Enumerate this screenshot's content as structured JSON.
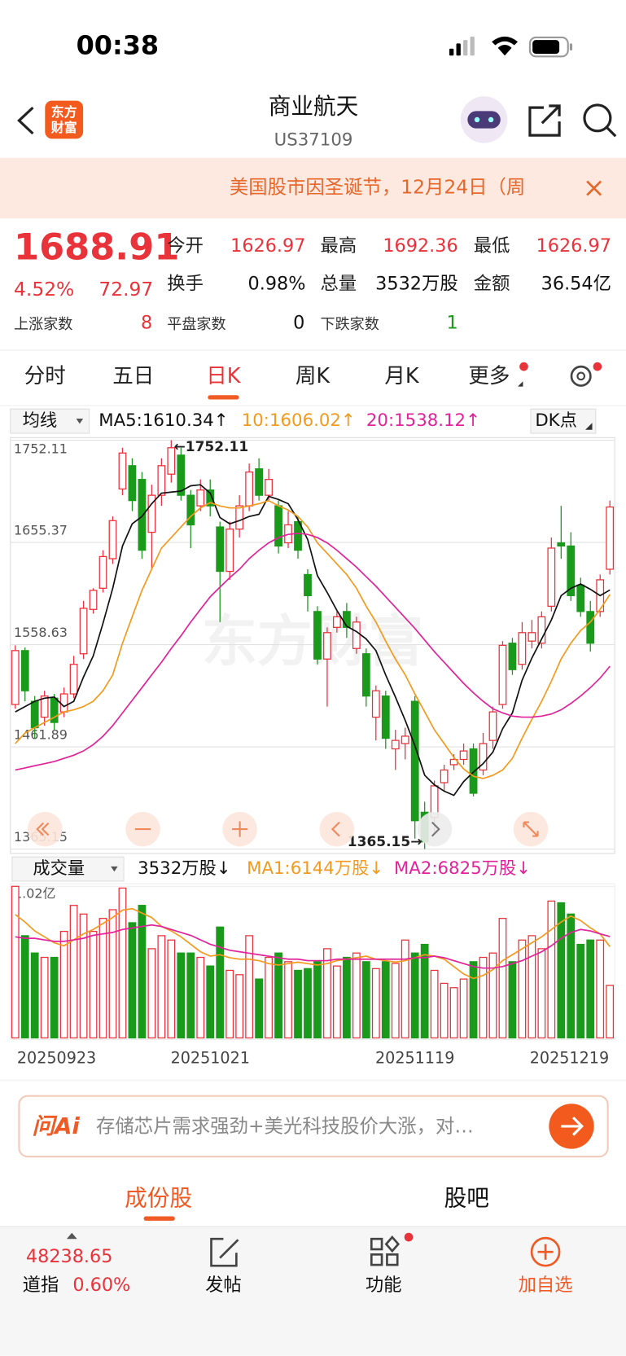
{
  "status": {
    "time": "00:38"
  },
  "header": {
    "logo": [
      "东方",
      "财富"
    ],
    "title": "商业航天",
    "code": "US37109"
  },
  "notice": "美国股市因圣诞节，12月24日（周",
  "quote": {
    "price": "1688.91",
    "pct": "4.52%",
    "change": "72.97",
    "fields": [
      {
        "label": "今开",
        "value": "1626.97"
      },
      {
        "label": "最高",
        "value": "1692.36"
      },
      {
        "label": "最低",
        "value": "1626.97"
      },
      {
        "label": "换手",
        "value": "0.98%"
      },
      {
        "label": "总量",
        "value": "3532万股"
      },
      {
        "label": "金额",
        "value": "36.54亿"
      }
    ],
    "breadth": [
      {
        "label": "上涨家数",
        "value": "8"
      },
      {
        "label": "平盘家数",
        "value": "0"
      },
      {
        "label": "下跌家数",
        "value": "1"
      }
    ]
  },
  "tabs": [
    "分时",
    "五日",
    "日K",
    "周K",
    "月K",
    "更多"
  ],
  "active_tab": 2,
  "ma_bar": {
    "selector": "均线",
    "dk": "DK点"
  },
  "vol_bar": {
    "selector": "成交量",
    "current": "3532万股↓"
  },
  "chart_data": [
    {
      "type": "candlestick",
      "watermark": "东方财富",
      "up_color": "#e8333b",
      "down_color": "#1a9a1a",
      "open": [
        1502,
        1553,
        1505,
        1490,
        1508,
        1495,
        1512,
        1550,
        1592,
        1612,
        1640,
        1706,
        1728,
        1715,
        1665,
        1700,
        1720,
        1738,
        1700,
        1690,
        1705,
        1670,
        1628,
        1668,
        1690,
        1725,
        1700,
        1690,
        1655,
        1675,
        1625,
        1590,
        1545,
        1575,
        1590,
        1555,
        1550,
        1490,
        1510,
        1460,
        1465,
        1505,
        1400,
        1395,
        1428,
        1445,
        1450,
        1460,
        1440,
        1468,
        1502,
        1560,
        1540,
        1562,
        1560,
        1595,
        1655,
        1652,
        1615,
        1590,
        1590,
        1630
      ],
      "high": [
        1558,
        1556,
        1510,
        1515,
        1512,
        1518,
        1548,
        1600,
        1612,
        1648,
        1680,
        1745,
        1735,
        1722,
        1710,
        1735,
        1752.11,
        1745,
        1705,
        1715,
        1715,
        1675,
        1675,
        1700,
        1730,
        1735,
        1725,
        1695,
        1685,
        1680,
        1630,
        1595,
        1575,
        1590,
        1598,
        1585,
        1555,
        1520,
        1515,
        1478,
        1480,
        1510,
        1410,
        1430,
        1445,
        1455,
        1465,
        1465,
        1475,
        1500,
        1562,
        1565,
        1580,
        1582,
        1590,
        1660,
        1690,
        1665,
        1622,
        1600,
        1625,
        1695
      ],
      "low": [
        1498,
        1505,
        1470,
        1482,
        1478,
        1490,
        1508,
        1545,
        1588,
        1608,
        1635,
        1700,
        1685,
        1640,
        1630,
        1690,
        1712,
        1695,
        1650,
        1685,
        1680,
        1580,
        1620,
        1660,
        1685,
        1695,
        1695,
        1645,
        1650,
        1640,
        1590,
        1540,
        1500,
        1570,
        1565,
        1550,
        1500,
        1468,
        1460,
        1440,
        1450,
        1375,
        1365.15,
        1380,
        1420,
        1440,
        1445,
        1415,
        1435,
        1460,
        1498,
        1530,
        1535,
        1555,
        1555,
        1590,
        1640,
        1600,
        1585,
        1552,
        1585,
        1625
      ],
      "close": [
        1553,
        1515,
        1480,
        1510,
        1485,
        1512,
        1540,
        1593,
        1610,
        1642,
        1676,
        1740,
        1695,
        1648,
        1700,
        1728,
        1745,
        1700,
        1672,
        1705,
        1690,
        1628,
        1668,
        1690,
        1722,
        1700,
        1715,
        1652,
        1672,
        1648,
        1605,
        1545,
        1570,
        1585,
        1575,
        1580,
        1510,
        1515,
        1470,
        1468,
        1472,
        1392,
        1372,
        1425,
        1440,
        1450,
        1458,
        1418,
        1465,
        1495,
        1558,
        1535,
        1570,
        1570,
        1585,
        1650,
        1652,
        1605,
        1590,
        1560,
        1620,
        1688.91
      ],
      "series": [
        {
          "name": "MA5:1610.34↑",
          "color": "#111111",
          "values": [
            1495,
            1500,
            1505,
            1508,
            1509,
            1500,
            1505,
            1528,
            1548,
            1579,
            1612,
            1652,
            1673,
            1680,
            1692,
            1702,
            1703,
            1704,
            1709,
            1710,
            1702,
            1679,
            1673,
            1676,
            1680,
            1682,
            1699,
            1696,
            1692,
            1677,
            1658,
            1624,
            1608,
            1591,
            1576,
            1571,
            1564,
            1553,
            1530,
            1509,
            1487,
            1463,
            1435,
            1426,
            1420,
            1416,
            1429,
            1438,
            1446,
            1457,
            1479,
            1494,
            1525,
            1546,
            1564,
            1582,
            1605,
            1612,
            1616,
            1611,
            1605,
            1610.34
          ]
        },
        {
          "name": "10:1606.02↑",
          "color": "#f39a1e",
          "values": [
            1465,
            1475,
            1480,
            1485,
            1490,
            1495,
            1497,
            1500,
            1505,
            1515,
            1530,
            1560,
            1585,
            1610,
            1630,
            1650,
            1660,
            1670,
            1680,
            1688,
            1693,
            1690,
            1688,
            1688,
            1690,
            1692,
            1695,
            1690,
            1686,
            1680,
            1670,
            1655,
            1645,
            1635,
            1625,
            1612,
            1595,
            1580,
            1562,
            1545,
            1530,
            1512,
            1495,
            1478,
            1465,
            1452,
            1441,
            1434,
            1432,
            1435,
            1440,
            1451,
            1470,
            1488,
            1505,
            1524,
            1545,
            1560,
            1572,
            1580,
            1592,
            1606.02
          ]
        },
        {
          "name": "20:1538.12↑",
          "color": "#e0239a",
          "values": [
            1440,
            1442,
            1444,
            1446,
            1448,
            1451,
            1454,
            1458,
            1464,
            1472,
            1482,
            1494,
            1506,
            1518,
            1530,
            1542,
            1555,
            1567,
            1580,
            1592,
            1604,
            1613,
            1622,
            1630,
            1640,
            1648,
            1655,
            1660,
            1663,
            1664,
            1663,
            1660,
            1655,
            1648,
            1640,
            1632,
            1623,
            1614,
            1604,
            1594,
            1584,
            1574,
            1563,
            1552,
            1542,
            1532,
            1522,
            1513,
            1505,
            1498,
            1494,
            1491,
            1490,
            1490,
            1491,
            1493,
            1497,
            1503,
            1510,
            1518,
            1527,
            1538.12
          ]
        }
      ],
      "high_label": "←1752.11",
      "low_label": "1365.15→",
      "ylim": [
        1365.15,
        1752.11
      ],
      "yticks": [
        1752.11,
        1655.37,
        1558.63,
        1461.89,
        1365.15
      ],
      "grid": true
    },
    {
      "type": "bar",
      "categories": [
        "20250923",
        null,
        null,
        null,
        null,
        null,
        null,
        null,
        null,
        null,
        null,
        null,
        null,
        null,
        null,
        null,
        null,
        null,
        null,
        null,
        "20251021",
        null,
        null,
        null,
        null,
        null,
        null,
        null,
        null,
        null,
        null,
        null,
        null,
        null,
        null,
        null,
        null,
        null,
        null,
        null,
        null,
        "20251119",
        null,
        null,
        null,
        null,
        null,
        null,
        null,
        null,
        null,
        null,
        null,
        null,
        null,
        null,
        null,
        null,
        null,
        null,
        null,
        "20251219"
      ],
      "values": [
        10200,
        6878,
        5712,
        5420,
        5420,
        7169,
        8918,
        8335,
        7169,
        8043,
        8626,
        10083,
        7752,
        8918,
        6003,
        6878,
        6586,
        5712,
        5712,
        5420,
        4838,
        7460,
        4546,
        4255,
        6878,
        3963,
        5420,
        5712,
        5129,
        4546,
        4663,
        5129,
        6003,
        4838,
        5420,
        5712,
        5129,
        4663,
        5129,
        5012,
        6586,
        5712,
        6295,
        4546,
        3672,
        3380,
        3963,
        5129,
        5420,
        5712,
        8043,
        5129,
        6586,
        6878,
        6003,
        9209,
        9093,
        8335,
        6295,
        6586,
        6586,
        3532
      ],
      "series": [
        {
          "name": "MA1:6144万股↓",
          "color": "#f39a1e",
          "values": [
            8300,
            7800,
            7200,
            6800,
            6400,
            6200,
            6600,
            7000,
            7300,
            7700,
            8100,
            8600,
            8700,
            8400,
            8100,
            7500,
            7200,
            6800,
            6300,
            5800,
            5500,
            5600,
            5400,
            5300,
            5300,
            5200,
            5000,
            4900,
            5000,
            5100,
            5000,
            4900,
            5000,
            5200,
            5300,
            5400,
            5500,
            5300,
            5200,
            5100,
            5200,
            5400,
            5600,
            5500,
            5300,
            4800,
            4300,
            4000,
            4200,
            4600,
            5200,
            5600,
            6000,
            6400,
            6800,
            7300,
            7800,
            8200,
            7900,
            7400,
            7000,
            6144
          ]
        },
        {
          "name": "MA2:6825万股↓",
          "color": "#e0239a",
          "values": [
            6800,
            6700,
            6700,
            6600,
            6500,
            6500,
            6600,
            6700,
            6900,
            7000,
            7100,
            7300,
            7400,
            7500,
            7600,
            7500,
            7300,
            7100,
            6900,
            6600,
            6300,
            6100,
            5900,
            5800,
            5700,
            5600,
            5500,
            5400,
            5300,
            5300,
            5200,
            5200,
            5200,
            5300,
            5300,
            5300,
            5300,
            5300,
            5300,
            5300,
            5300,
            5400,
            5400,
            5500,
            5400,
            5200,
            5000,
            4800,
            4700,
            4700,
            4800,
            5000,
            5200,
            5500,
            5800,
            6200,
            6700,
            7100,
            7300,
            7200,
            7000,
            6825
          ]
        }
      ],
      "ylim": [
        0,
        10200
      ],
      "yticks": [
        {
          "value": 10200,
          "label": "1.02亿"
        }
      ]
    }
  ],
  "ai_bar": {
    "brand": "问Ai",
    "text": "存储芯片需求强劲+美光科技股价大涨，对…"
  },
  "sub_tabs": [
    "成份股",
    "股吧"
  ],
  "bottom": {
    "index_value": "48238.65",
    "index_name": "道指",
    "index_pct": "0.60%",
    "items": [
      "发帖",
      "功能",
      "加自选"
    ]
  }
}
